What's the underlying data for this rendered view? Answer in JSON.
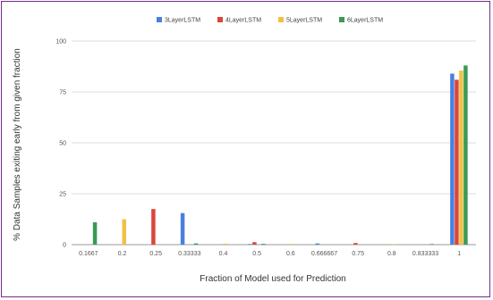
{
  "chart_data": {
    "type": "bar",
    "title": "",
    "xlabel": "Fraction of Model used for Prediction",
    "ylabel": "% Data Samples exiting early from given fraction",
    "ylim": [
      0,
      100
    ],
    "yticks": [
      0,
      25,
      50,
      75,
      100
    ],
    "grid": true,
    "legend_position": "top",
    "categories": [
      "0.1667",
      "0.2",
      "0.25",
      "0.33333",
      "0.4",
      "0.5",
      "0.6",
      "0.666667",
      "0.75",
      "0.8",
      "0.833333",
      "1"
    ],
    "series": [
      {
        "name": "3LayerLSTM",
        "color": "#4a7fe0",
        "values": [
          0,
          0,
          0,
          15.5,
          0,
          0.3,
          0,
          0.6,
          0,
          0,
          0,
          84
        ]
      },
      {
        "name": "4LayerLSTM",
        "color": "#d9473a",
        "values": [
          0,
          0,
          17.5,
          0,
          0,
          1.2,
          0,
          0,
          0.8,
          0,
          0,
          81
        ]
      },
      {
        "name": "5LayerLSTM",
        "color": "#f2c046",
        "values": [
          0,
          12.5,
          0,
          0,
          0.5,
          0,
          0.4,
          0,
          0,
          0.3,
          0,
          85.5
        ]
      },
      {
        "name": "6LayerLSTM",
        "color": "#3a9a55",
        "values": [
          11,
          0,
          0,
          0.6,
          0,
          0.4,
          0,
          0,
          0,
          0,
          0.3,
          88
        ]
      }
    ]
  }
}
